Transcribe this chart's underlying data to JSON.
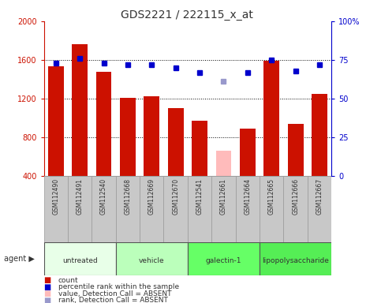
{
  "title": "GDS2221 / 222115_x_at",
  "samples": [
    "GSM112490",
    "GSM112491",
    "GSM112540",
    "GSM112668",
    "GSM112669",
    "GSM112670",
    "GSM112541",
    "GSM112661",
    "GSM112664",
    "GSM112665",
    "GSM112666",
    "GSM112667"
  ],
  "counts": [
    1530,
    1760,
    1480,
    1210,
    1220,
    1100,
    970,
    null,
    890,
    1590,
    940,
    1250
  ],
  "counts_absent": [
    null,
    null,
    null,
    null,
    null,
    null,
    null,
    660,
    null,
    null,
    null,
    null
  ],
  "percentile_ranks": [
    73,
    76,
    73,
    72,
    72,
    70,
    67,
    null,
    67,
    75,
    68,
    72
  ],
  "percentile_ranks_absent": [
    null,
    null,
    null,
    null,
    null,
    null,
    null,
    61,
    null,
    null,
    null,
    null
  ],
  "ylim_left": [
    400,
    2000
  ],
  "ylim_right": [
    0,
    100
  ],
  "yticks_left": [
    400,
    800,
    1200,
    1600,
    2000
  ],
  "yticks_right": [
    0,
    25,
    50,
    75,
    100
  ],
  "groups": [
    {
      "label": "untreated",
      "start": 0,
      "end": 3,
      "color": "#e8ffe8"
    },
    {
      "label": "vehicle",
      "start": 3,
      "end": 6,
      "color": "#bbffbb"
    },
    {
      "label": "galectin-1",
      "start": 6,
      "end": 9,
      "color": "#66ff66"
    },
    {
      "label": "lipopolysaccharide",
      "start": 9,
      "end": 12,
      "color": "#55ee55"
    }
  ],
  "bar_color_present": "#cc1100",
  "bar_color_absent": "#ffbbbb",
  "rank_color_present": "#0000cc",
  "rank_color_absent": "#9999cc",
  "bg_color": "#ffffff",
  "tick_area_color": "#c8c8c8",
  "grid_color": "#000000",
  "left_label_color": "#cc1100",
  "right_label_color": "#0000cc"
}
